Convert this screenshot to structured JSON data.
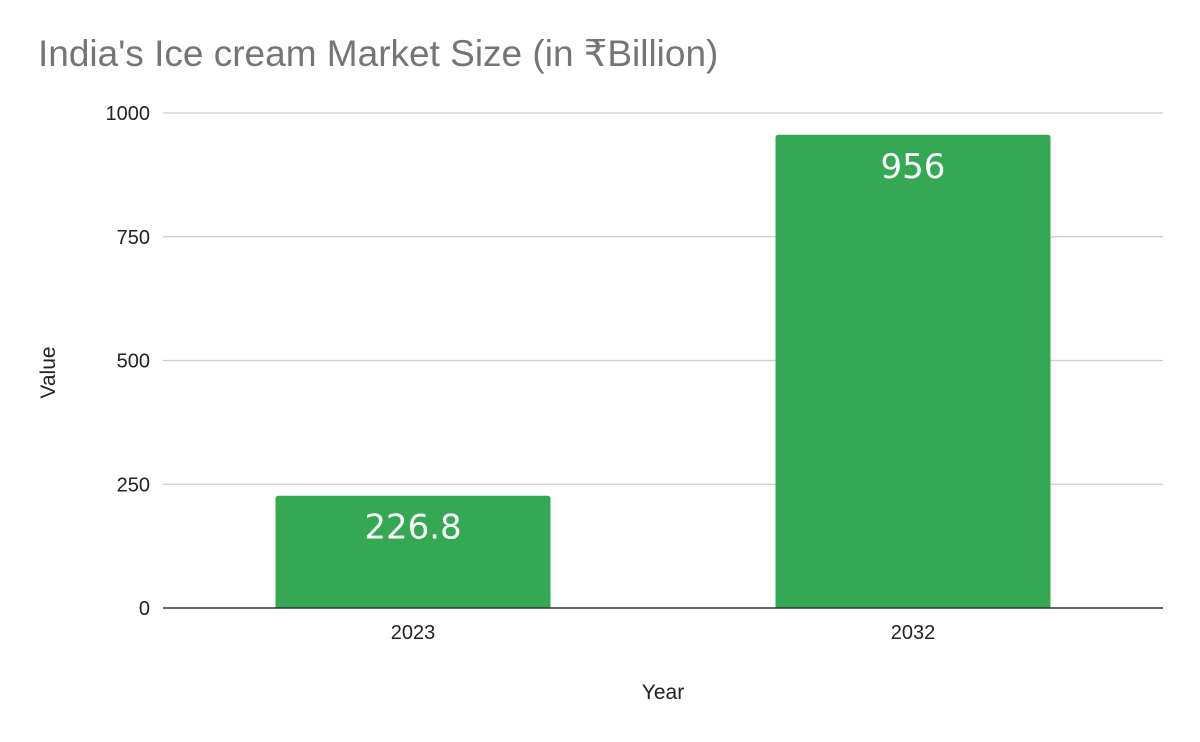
{
  "chart_data": {
    "type": "bar",
    "title": "India's Ice cream Market Size (in ₹Billion)",
    "xlabel": "Year",
    "ylabel": "Value",
    "categories": [
      "2023",
      "2032"
    ],
    "values": [
      226.8,
      956
    ],
    "data_labels": [
      "226.8",
      "956"
    ],
    "ylim": [
      0,
      1000
    ],
    "yticks": [
      0,
      250,
      500,
      750,
      1000
    ],
    "grid": true,
    "legend": "none",
    "bar_color": "#34a853",
    "title_color": "#757575",
    "gridline_color": "#cccccc",
    "baseline_color": "#333333"
  }
}
